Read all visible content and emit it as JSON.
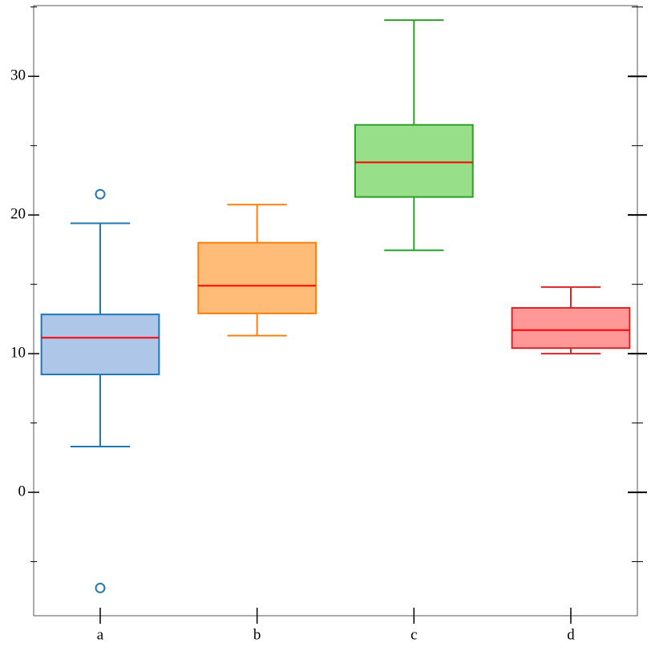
{
  "chart_data": {
    "type": "box",
    "categories": [
      "a",
      "b",
      "c",
      "d"
    ],
    "boxes": [
      {
        "whislo": 3.3,
        "q1": 8.5,
        "med": 11.15,
        "q3": 12.83,
        "whishi": 19.4,
        "fliers": [
          21.5,
          -6.9
        ],
        "fill": "#aec7e8",
        "color": "#1f77b4"
      },
      {
        "whislo": 11.3,
        "q1": 12.9,
        "med": 14.9,
        "q3": 18.0,
        "whishi": 20.75,
        "fliers": [],
        "fill": "#ffbb78",
        "color": "#ff7f0e"
      },
      {
        "whislo": 17.45,
        "q1": 21.3,
        "med": 23.8,
        "q3": 26.5,
        "whishi": 34.05,
        "fliers": [],
        "fill": "#98df8a",
        "color": "#2ca02c"
      },
      {
        "whislo": 10.0,
        "q1": 10.4,
        "med": 11.7,
        "q3": 13.3,
        "whishi": 14.8,
        "fliers": [],
        "fill": "#ff9896",
        "color": "#d62728"
      }
    ],
    "median_color": "#ff0000",
    "ylim": [
      -8.9,
      35.1
    ],
    "yticks": [
      0,
      10,
      20,
      30
    ],
    "yminor_ticks": [
      -5,
      5,
      15,
      25,
      35
    ]
  }
}
